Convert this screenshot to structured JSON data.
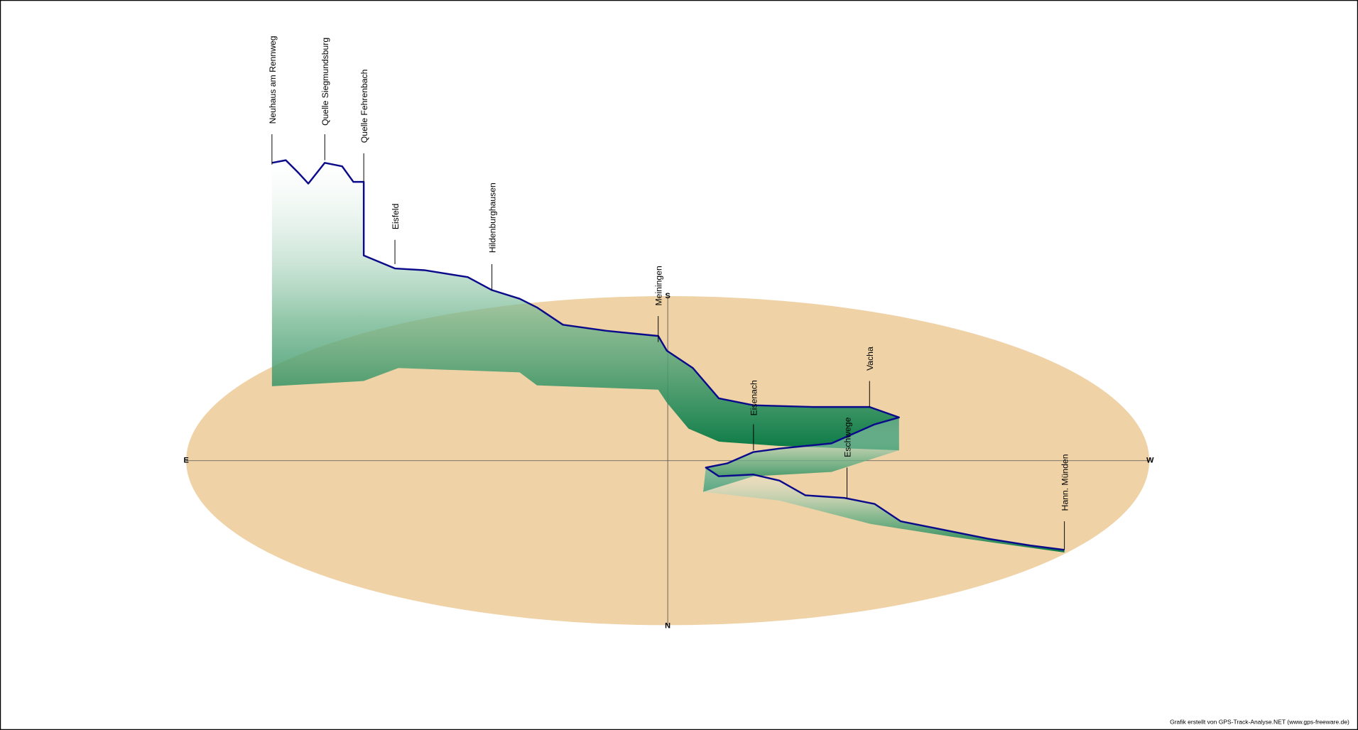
{
  "compass": {
    "east": "E",
    "west": "W",
    "south": "S",
    "north": "N"
  },
  "places": [
    "Neuhaus am Rennweg",
    "Quelle Siegmundsburg",
    "Quelle Fehrenbach",
    "Eisfeld",
    "Hildenburghausen",
    "Meiningen",
    "Eisenach",
    "Eschwege",
    "Vacha",
    "Hann. Münden"
  ],
  "credit": "Grafik erstellt von GPS-Track-Analyse.NET (www.gps-freeware.de)"
}
